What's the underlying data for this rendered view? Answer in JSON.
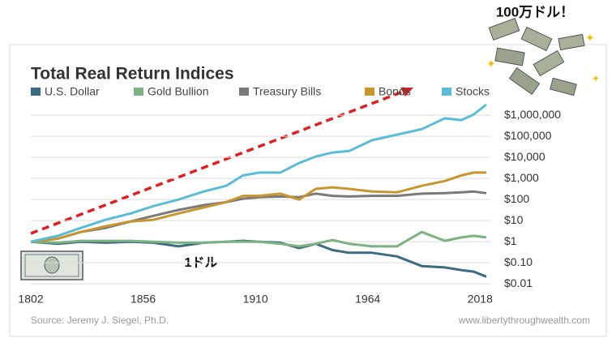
{
  "chart_data": {
    "type": "line",
    "title": "Total Real Return Indices",
    "annotations": [
      "100万ドル！",
      "1ドル"
    ],
    "source": "Source: Jeremy J. Siegel, Ph.D.",
    "credit": "www.libertythroughwealth.com",
    "log_scale": true,
    "grid": true,
    "legend": "top",
    "x": [
      1802,
      1815,
      1826,
      1838,
      1850,
      1861,
      1873,
      1885,
      1896,
      1904,
      1912,
      1922,
      1931,
      1939,
      1947,
      1955,
      1966,
      1978,
      1990,
      2001,
      2009,
      2015,
      2021
    ],
    "xlim": [
      1802,
      2021
    ],
    "xticks": [
      1802,
      1856,
      1910,
      1964,
      2018
    ],
    "ylim": [
      0.005,
      5000000
    ],
    "yticks": [
      {
        "value": 0.01,
        "label": "$0.01"
      },
      {
        "value": 0.1,
        "label": "$0.10"
      },
      {
        "value": 1,
        "label": "$1"
      },
      {
        "value": 10,
        "label": "$10"
      },
      {
        "value": 100,
        "label": "$100"
      },
      {
        "value": 1000,
        "label": "$1,000"
      },
      {
        "value": 10000,
        "label": "$10,000"
      },
      {
        "value": 100000,
        "label": "$100,000"
      },
      {
        "value": 1000000,
        "label": "$1,000,000"
      }
    ],
    "series": [
      {
        "name": "U.S. Dollar",
        "color": "#3d6b80",
        "values": [
          1,
          0.8,
          1,
          0.9,
          1,
          0.9,
          0.6,
          0.9,
          1,
          1.1,
          1,
          0.9,
          0.5,
          0.8,
          0.4,
          0.3,
          0.3,
          0.2,
          0.07,
          0.06,
          0.045,
          0.038,
          0.022
        ]
      },
      {
        "name": "Gold Bullion",
        "color": "#7db383",
        "values": [
          1,
          0.9,
          1.1,
          1.1,
          1.1,
          1,
          0.9,
          0.9,
          1,
          1,
          1,
          0.8,
          0.6,
          0.8,
          1.2,
          0.8,
          0.6,
          0.6,
          2.9,
          1.1,
          1.6,
          1.9,
          1.6
        ]
      },
      {
        "name": "Treasury Bills",
        "color": "#7a7a7a",
        "values": [
          1,
          1.4,
          2.9,
          4.5,
          9.1,
          17,
          32,
          54,
          76,
          110,
          130,
          140,
          130,
          190,
          150,
          140,
          150,
          150,
          190,
          200,
          220,
          240,
          200
        ]
      },
      {
        "name": "Bonds",
        "color": "#c8962e",
        "values": [
          1,
          1.4,
          2.9,
          5.4,
          9.1,
          11,
          22,
          42,
          76,
          150,
          150,
          190,
          100,
          320,
          380,
          320,
          240,
          220,
          450,
          760,
          1400,
          1900,
          1900
        ]
      },
      {
        "name": "Stocks",
        "color": "#5bbcd6",
        "values": [
          1,
          1.9,
          4.5,
          11,
          22,
          49,
          100,
          240,
          450,
          1400,
          1900,
          1900,
          5400,
          11000,
          17000,
          20000,
          65000,
          120000,
          220000,
          710000,
          590000,
          1100000,
          3200000
        ]
      }
    ]
  }
}
